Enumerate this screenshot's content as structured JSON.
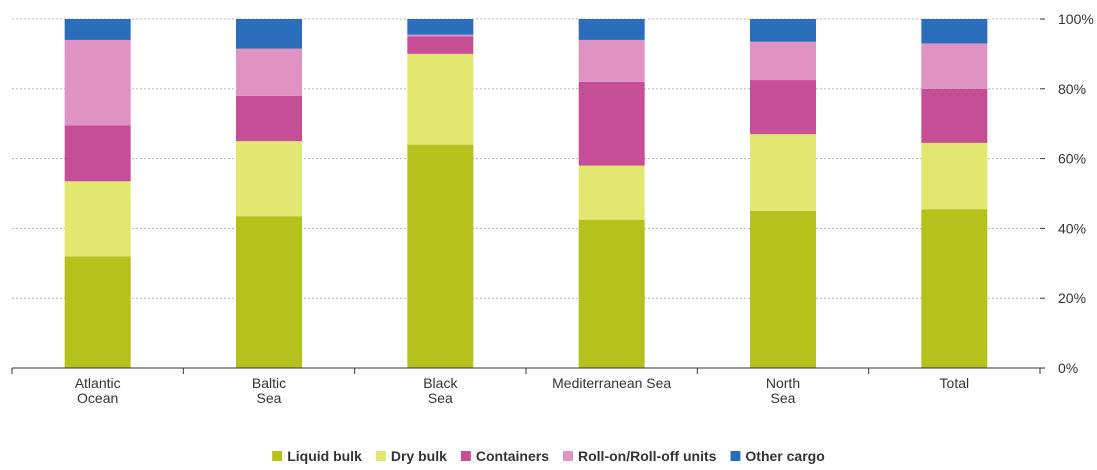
{
  "chart_data": {
    "type": "bar",
    "stacked": true,
    "categories": [
      [
        "Atlantic",
        "Ocean"
      ],
      [
        "Baltic",
        "Sea"
      ],
      [
        "Black",
        "Sea"
      ],
      [
        "Mediterranean Sea"
      ],
      [
        "North",
        "Sea"
      ],
      [
        "Total"
      ]
    ],
    "series": [
      {
        "name": "Liquid bulk",
        "color": "#b5c21c",
        "values": [
          32,
          43.5,
          64,
          42.5,
          45,
          45.5
        ]
      },
      {
        "name": "Dry bulk",
        "color": "#e2e86f",
        "values": [
          21.5,
          21.5,
          26,
          15.5,
          22,
          19
        ]
      },
      {
        "name": "Containers",
        "color": "#c64e96",
        "values": [
          16,
          13,
          5,
          24,
          15.5,
          15.5
        ]
      },
      {
        "name": "Roll-on/Roll-off units",
        "color": "#df93c3",
        "values": [
          24.5,
          13.5,
          0.5,
          12,
          11,
          13
        ]
      },
      {
        "name": "Other cargo",
        "color": "#2a6ebb",
        "values": [
          6,
          8.5,
          4.5,
          6,
          6.5,
          7
        ]
      }
    ],
    "y_ticks": [
      "0%",
      "20%",
      "40%",
      "60%",
      "80%",
      "100%"
    ],
    "ylim": [
      0,
      100
    ],
    "y_axis_position": "right",
    "grid": true,
    "legend_position": "bottom"
  }
}
